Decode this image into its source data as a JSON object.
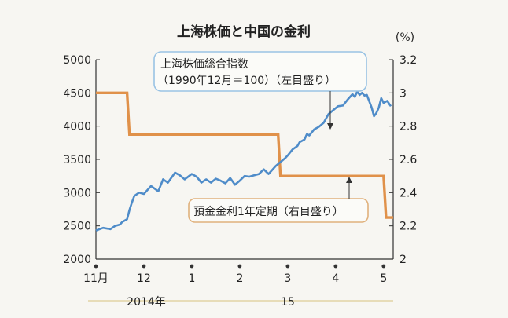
{
  "chart_data": {
    "type": "line",
    "title": "上海株価と中国の金利",
    "right_unit": "(%)",
    "left_axis": {
      "ylim": [
        2000,
        5000
      ],
      "ticks": [
        "5000",
        "4500",
        "4000",
        "3500",
        "3000",
        "2500",
        "2000"
      ]
    },
    "right_axis": {
      "ylim": [
        2.0,
        3.2
      ],
      "ticks": [
        "3.2",
        "3",
        "2.8",
        "2.6",
        "2.4",
        "2.2",
        "2"
      ]
    },
    "x_ticks": [
      "11月",
      "12",
      "1",
      "2",
      "3",
      "4",
      "5"
    ],
    "x_years": [
      "2014年",
      "15"
    ],
    "series": [
      {
        "name_lines": [
          "上海株価総合指数",
          "（1990年12月＝100）（左目盛り）"
        ],
        "axis": "left",
        "color": "#4f8cc9",
        "x": [
          0.0,
          0.3,
          0.6,
          0.8,
          1.0,
          1.1,
          1.3,
          1.4,
          1.5,
          1.6,
          1.8,
          2.0,
          2.3,
          2.6,
          2.8,
          3.0,
          3.3,
          3.5,
          3.7,
          4.0,
          4.2,
          4.4,
          4.6,
          4.8,
          5.0,
          5.2,
          5.4,
          5.6,
          5.8,
          6.0,
          6.2,
          6.4,
          6.6,
          6.8,
          7.0,
          7.2,
          7.5,
          7.7,
          7.9,
          8.0,
          8.2,
          8.4,
          8.5,
          8.7,
          8.8,
          8.9,
          9.1,
          9.3,
          9.5,
          9.7,
          9.9,
          10.1,
          10.3,
          10.5,
          10.7,
          10.8,
          10.9,
          11.0,
          11.1,
          11.2,
          11.3,
          11.5,
          11.6,
          11.7,
          11.8,
          11.9,
          12.0,
          12.15,
          12.3
        ],
        "values": [
          2430,
          2470,
          2450,
          2500,
          2520,
          2560,
          2600,
          2740,
          2850,
          2950,
          3000,
          2980,
          3100,
          3020,
          3200,
          3150,
          3300,
          3260,
          3200,
          3280,
          3240,
          3150,
          3200,
          3150,
          3210,
          3180,
          3140,
          3220,
          3120,
          3180,
          3250,
          3240,
          3260,
          3280,
          3350,
          3280,
          3400,
          3460,
          3520,
          3560,
          3650,
          3700,
          3760,
          3800,
          3880,
          3860,
          3950,
          3990,
          4050,
          4180,
          4240,
          4300,
          4310,
          4400,
          4480,
          4440,
          4520,
          4470,
          4500,
          4460,
          4470,
          4280,
          4150,
          4200,
          4280,
          4420,
          4350,
          4380,
          4300
        ]
      },
      {
        "name": "預金金利1年定期（右目盛り）",
        "axis": "right",
        "color": "#e0914a",
        "x": [
          0.0,
          1.3,
          1.4,
          7.6,
          7.7,
          12.0,
          12.1,
          12.4
        ],
        "values": [
          3.0,
          3.0,
          2.75,
          2.75,
          2.5,
          2.5,
          2.25,
          2.25
        ]
      }
    ]
  }
}
